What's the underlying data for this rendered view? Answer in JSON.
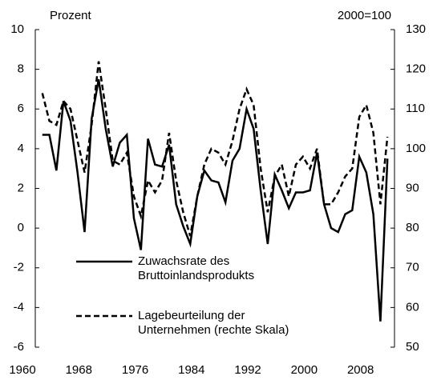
{
  "chart_data": {
    "type": "line",
    "y_label": "Prozent",
    "y2_label": "2000=100",
    "x": [
      1961,
      1962,
      1963,
      1964,
      1965,
      1966,
      1967,
      1968,
      1969,
      1970,
      1971,
      1972,
      1973,
      1974,
      1975,
      1976,
      1977,
      1978,
      1979,
      1980,
      1981,
      1982,
      1983,
      1984,
      1985,
      1986,
      1987,
      1988,
      1989,
      1990,
      1991,
      1992,
      1993,
      1994,
      1995,
      1996,
      1997,
      1998,
      1999,
      2000,
      2001,
      2002,
      2003,
      2004,
      2005,
      2006,
      2007,
      2008,
      2009,
      2010
    ],
    "series": [
      {
        "name": "Zuwachsrate des Bruttoinlandsprodukts",
        "color": "#000000",
        "line_style": "solid",
        "axis": "y",
        "values": [
          4.7,
          4.7,
          2.9,
          6.4,
          5.4,
          2.8,
          -0.2,
          5.5,
          7.5,
          5.0,
          3.1,
          4.3,
          4.7,
          0.5,
          -1.1,
          4.5,
          3.2,
          3.1,
          4.2,
          1.2,
          0.1,
          -0.8,
          1.6,
          2.9,
          2.4,
          2.3,
          1.3,
          3.4,
          4.0,
          6.0,
          5.0,
          1.9,
          -0.8,
          2.7,
          1.9,
          1.0,
          1.8,
          1.8,
          1.9,
          3.8,
          1.2,
          0.0,
          -0.2,
          0.7,
          0.9,
          3.6,
          2.8,
          0.7,
          -4.7,
          3.5
        ]
      },
      {
        "name": "Lagebeurteilung der Unternehmen (rechte Skala)",
        "color": "#000000",
        "line_style": "dashed",
        "axis": "y2",
        "values": [
          114,
          107,
          106,
          112,
          110,
          102,
          94,
          106,
          122,
          110,
          97,
          96,
          99,
          88,
          83,
          92,
          89,
          92,
          104,
          92,
          84,
          78,
          88,
          96,
          100,
          99,
          96,
          102,
          110,
          115,
          111,
          95,
          84,
          93,
          96,
          88,
          96,
          98,
          95,
          100,
          86,
          86,
          89,
          93,
          95,
          108,
          111,
          104,
          86,
          103
        ]
      }
    ],
    "xlim": [
      1960,
      2011
    ],
    "xticks": [
      1960,
      1968,
      1976,
      1984,
      1992,
      2000,
      2008
    ],
    "ylim": [
      -6,
      10
    ],
    "yticks": [
      -6,
      -4,
      -2,
      0,
      2,
      4,
      6,
      8,
      10
    ],
    "y2lim": [
      50,
      130
    ],
    "y2ticks": [
      50,
      60,
      70,
      80,
      90,
      100,
      110,
      120,
      130
    ],
    "grid": false
  }
}
